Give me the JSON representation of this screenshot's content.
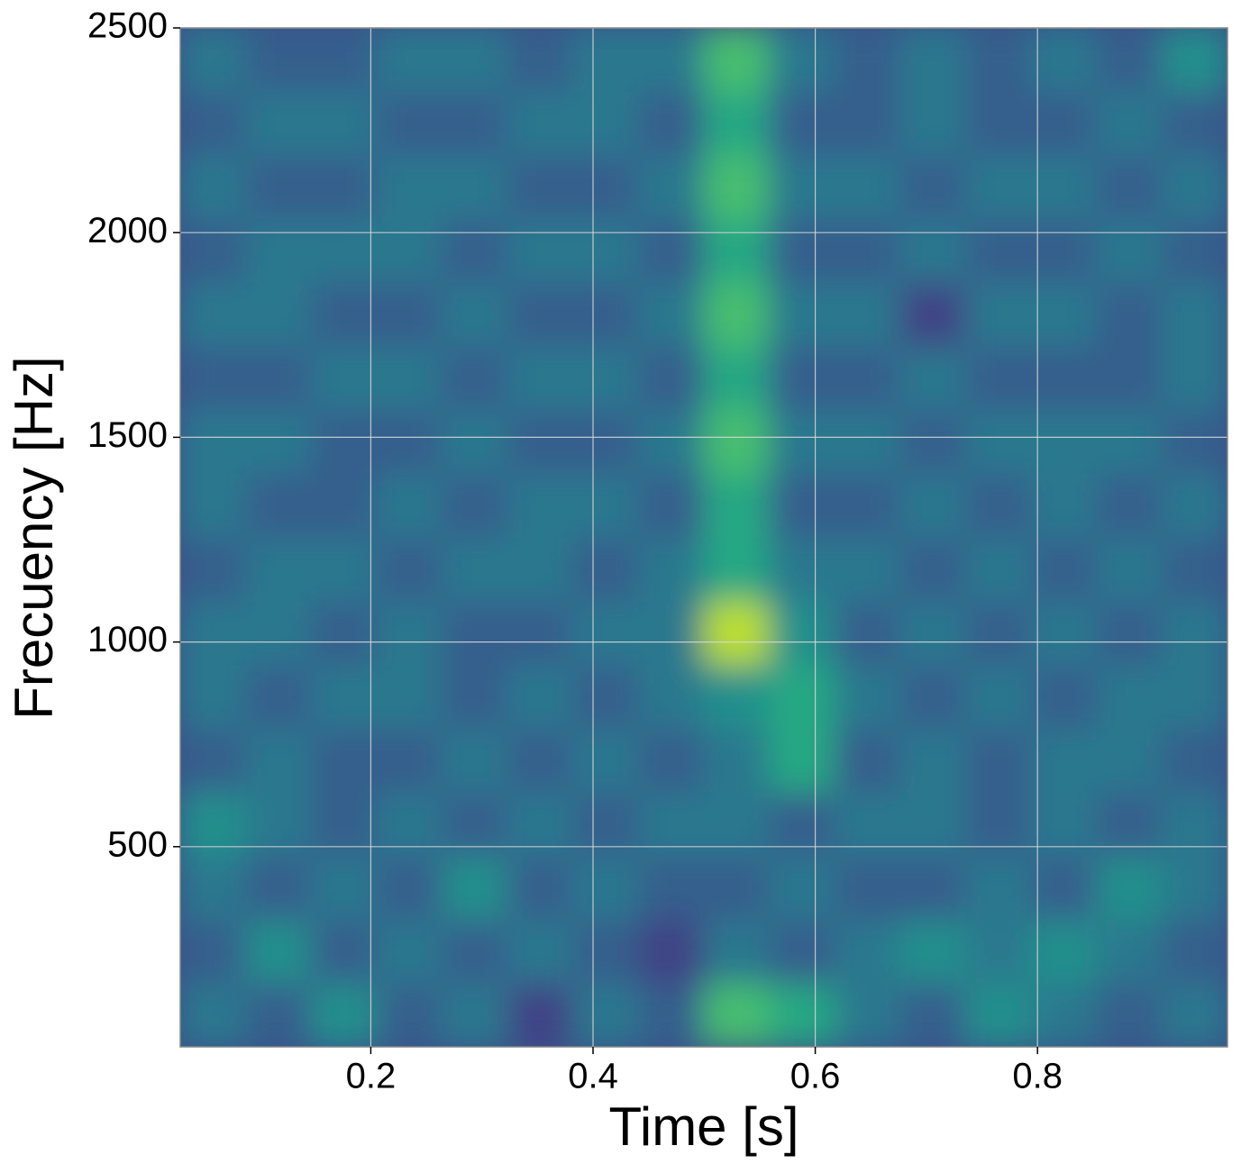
{
  "chart_data": {
    "type": "heatmap",
    "colormap": "viridis",
    "xlabel": "Time [s]",
    "ylabel": "Frecuency [Hz]",
    "xlim": [
      0.0285,
      0.971
    ],
    "ylim": [
      11,
      2500
    ],
    "xticks": [
      0.2,
      0.4,
      0.6,
      0.8
    ],
    "yticks": [
      500,
      1000,
      1500,
      2000,
      2500
    ],
    "grid": true,
    "z": [
      [
        0.4,
        0.3,
        0.5,
        0.3,
        0.4,
        0.2,
        0.4,
        0.3,
        0.7,
        0.6,
        0.4,
        0.3,
        0.5,
        0.4,
        0.3,
        0.4
      ],
      [
        0.3,
        0.5,
        0.3,
        0.4,
        0.3,
        0.4,
        0.3,
        0.2,
        0.4,
        0.3,
        0.4,
        0.5,
        0.4,
        0.5,
        0.4,
        0.3
      ],
      [
        0.4,
        0.3,
        0.4,
        0.3,
        0.5,
        0.3,
        0.4,
        0.3,
        0.3,
        0.4,
        0.3,
        0.3,
        0.4,
        0.3,
        0.5,
        0.4
      ],
      [
        0.5,
        0.4,
        0.3,
        0.4,
        0.3,
        0.4,
        0.3,
        0.4,
        0.4,
        0.3,
        0.4,
        0.4,
        0.3,
        0.4,
        0.3,
        0.4
      ],
      [
        0.3,
        0.4,
        0.3,
        0.3,
        0.4,
        0.3,
        0.4,
        0.3,
        0.4,
        0.6,
        0.3,
        0.4,
        0.3,
        0.4,
        0.4,
        0.3
      ],
      [
        0.4,
        0.3,
        0.4,
        0.4,
        0.3,
        0.4,
        0.3,
        0.4,
        0.5,
        0.6,
        0.4,
        0.3,
        0.4,
        0.3,
        0.4,
        0.4
      ],
      [
        0.4,
        0.4,
        0.3,
        0.4,
        0.3,
        0.3,
        0.4,
        0.4,
        0.9,
        0.5,
        0.3,
        0.4,
        0.3,
        0.4,
        0.3,
        0.4
      ],
      [
        0.3,
        0.4,
        0.4,
        0.3,
        0.4,
        0.4,
        0.3,
        0.4,
        0.6,
        0.4,
        0.4,
        0.3,
        0.4,
        0.3,
        0.4,
        0.3
      ],
      [
        0.4,
        0.3,
        0.3,
        0.4,
        0.3,
        0.4,
        0.4,
        0.3,
        0.6,
        0.3,
        0.3,
        0.4,
        0.3,
        0.4,
        0.3,
        0.4
      ],
      [
        0.4,
        0.4,
        0.3,
        0.3,
        0.4,
        0.3,
        0.3,
        0.4,
        0.7,
        0.4,
        0.4,
        0.3,
        0.4,
        0.4,
        0.4,
        0.3
      ],
      [
        0.3,
        0.3,
        0.4,
        0.4,
        0.3,
        0.4,
        0.4,
        0.3,
        0.6,
        0.3,
        0.3,
        0.4,
        0.3,
        0.3,
        0.3,
        0.4
      ],
      [
        0.4,
        0.4,
        0.3,
        0.3,
        0.4,
        0.3,
        0.3,
        0.4,
        0.7,
        0.4,
        0.4,
        0.2,
        0.4,
        0.4,
        0.3,
        0.4
      ],
      [
        0.3,
        0.4,
        0.4,
        0.4,
        0.3,
        0.4,
        0.4,
        0.3,
        0.6,
        0.3,
        0.3,
        0.4,
        0.3,
        0.3,
        0.4,
        0.3
      ],
      [
        0.4,
        0.3,
        0.3,
        0.4,
        0.4,
        0.3,
        0.3,
        0.4,
        0.7,
        0.4,
        0.4,
        0.3,
        0.4,
        0.4,
        0.3,
        0.4
      ],
      [
        0.3,
        0.4,
        0.4,
        0.3,
        0.3,
        0.4,
        0.4,
        0.3,
        0.6,
        0.3,
        0.3,
        0.4,
        0.3,
        0.3,
        0.4,
        0.3
      ],
      [
        0.4,
        0.3,
        0.3,
        0.4,
        0.4,
        0.3,
        0.4,
        0.4,
        0.7,
        0.4,
        0.3,
        0.4,
        0.3,
        0.4,
        0.3,
        0.5
      ]
    ]
  }
}
